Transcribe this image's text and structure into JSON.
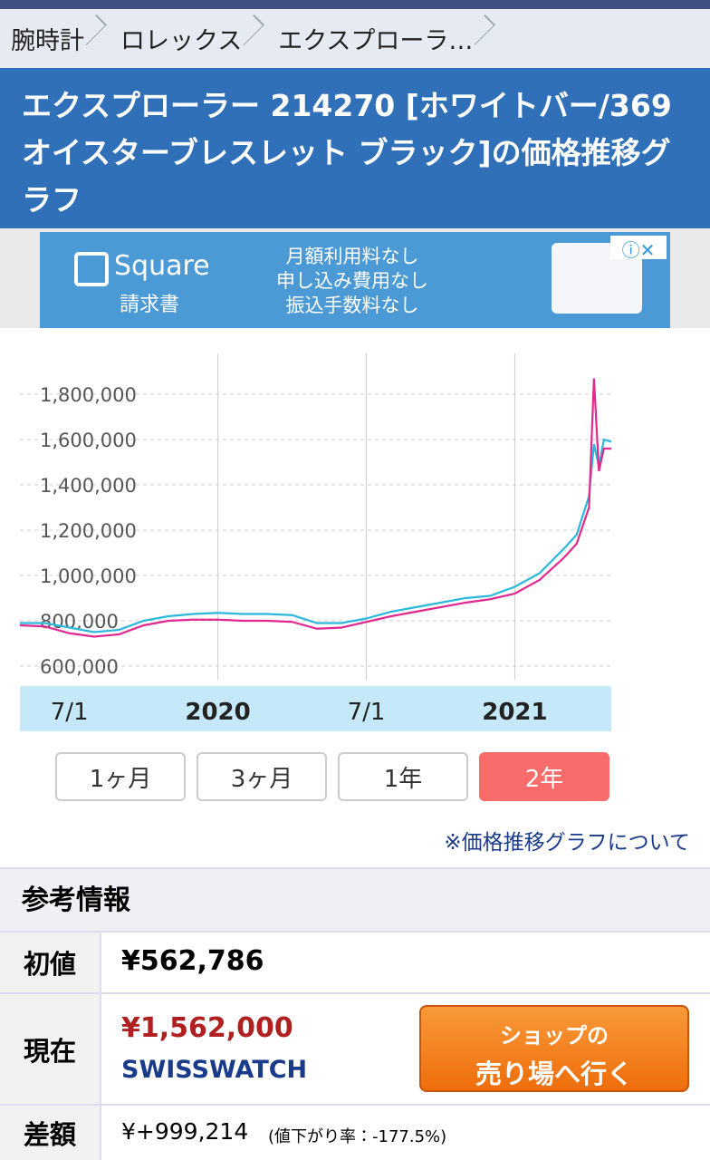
{
  "breadcrumb": [
    "腕時計",
    "ロレックス",
    "エクスプローラ…"
  ],
  "header": {
    "title": "エクスプローラー 214270 [ホワイトバー/369 オイスターブレスレット ブラック]の価格推移グラフ"
  },
  "ad": {
    "brand": "Square",
    "product": "請求書",
    "lines": [
      "月額利用料なし",
      "申し込み費用なし",
      "振込手数料なし"
    ]
  },
  "chart_data": {
    "type": "line",
    "x": [
      0,
      1,
      2,
      3,
      4,
      5,
      6,
      7,
      8,
      9,
      10,
      11,
      12,
      13,
      14,
      15,
      16,
      17,
      18,
      19,
      20,
      21,
      22,
      22.5,
      23,
      23.2,
      23.4,
      23.6,
      23.9
    ],
    "series": [
      {
        "color": "#2bb8dc",
        "values": [
          790000,
          790000,
          770000,
          750000,
          760000,
          800000,
          820000,
          830000,
          835000,
          830000,
          830000,
          825000,
          790000,
          790000,
          810000,
          840000,
          860000,
          880000,
          900000,
          910000,
          950000,
          1010000,
          1120000,
          1180000,
          1350000,
          1580000,
          1480000,
          1600000,
          1590000
        ]
      },
      {
        "color": "#e0298f",
        "values": [
          780000,
          775000,
          745000,
          730000,
          740000,
          780000,
          800000,
          805000,
          805000,
          800000,
          800000,
          795000,
          765000,
          770000,
          795000,
          820000,
          840000,
          860000,
          880000,
          895000,
          920000,
          980000,
          1080000,
          1140000,
          1300000,
          1870000,
          1460000,
          1560000,
          1560000
        ]
      }
    ],
    "xlim": [
      0,
      23.9
    ],
    "xticks": [
      {
        "value": 2,
        "label": "7/1"
      },
      {
        "value": 8,
        "label": "2020"
      },
      {
        "value": 14,
        "label": "7/1"
      },
      {
        "value": 20,
        "label": "2021"
      }
    ],
    "ylim": [
      540000,
      1980000
    ],
    "yticks": [
      {
        "value": 600000,
        "label": "600,000"
      },
      {
        "value": 800000,
        "label": "800,000"
      },
      {
        "value": 1000000,
        "label": "1,000,000"
      },
      {
        "value": 1200000,
        "label": "1,200,000"
      },
      {
        "value": 1400000,
        "label": "1,400,000"
      },
      {
        "value": 1600000,
        "label": "1,600,000"
      },
      {
        "value": 1800000,
        "label": "1,800,000"
      }
    ],
    "grid": true
  },
  "periods": [
    "1ヶ月",
    "3ヶ月",
    "1年",
    "2年"
  ],
  "about_link": "※価格推移グラフについて",
  "info": {
    "title": "参考情報",
    "rows": [
      [
        "初値",
        "¥562,786"
      ],
      [
        "現在",
        "¥1,562,000",
        "SWISSWATCH"
      ],
      [
        "差額",
        "¥+999,214",
        "(値下がり率：-177.5%)"
      ]
    ],
    "shop_button": [
      "ショップの",
      "売り場へ行く"
    ]
  }
}
